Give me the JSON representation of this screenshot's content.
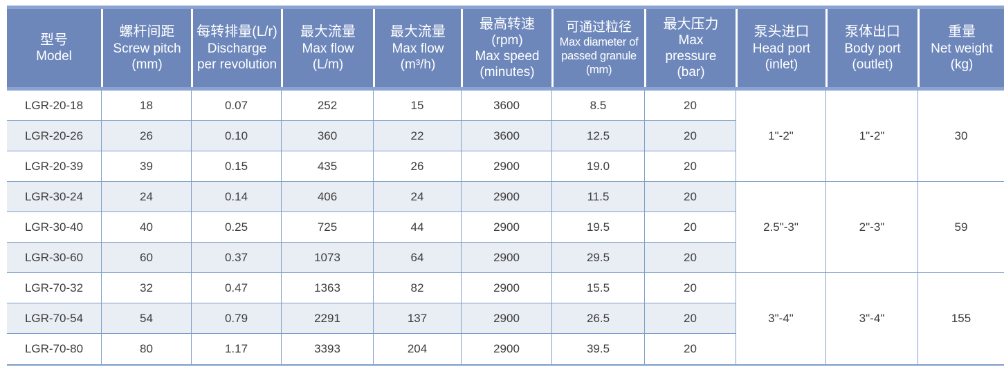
{
  "chart_data": {
    "type": "table",
    "columns": [
      {
        "key": "model",
        "zh": "型号",
        "en": [
          "Model"
        ]
      },
      {
        "key": "screw_pitch",
        "zh": "螺杆间距",
        "en": [
          "Screw pitch",
          "(mm)"
        ]
      },
      {
        "key": "discharge",
        "zh": "每转排量(L/r)",
        "en": [
          "Discharge",
          "per revolution"
        ]
      },
      {
        "key": "flow_lm",
        "zh": "最大流量",
        "en": [
          "Max flow",
          "(L/m)"
        ]
      },
      {
        "key": "flow_m3h",
        "zh": "最大流量",
        "en": [
          "Max flow",
          "(m³/h)"
        ]
      },
      {
        "key": "speed_rpm",
        "zh": "最高转速",
        "en": [
          "(rpm)",
          "Max speed",
          "(minutes)"
        ]
      },
      {
        "key": "granule_mm",
        "zh": "可通过粒径",
        "en": [
          "Max diameter of",
          "passed granule",
          "(mm)"
        ]
      },
      {
        "key": "pressure_bar",
        "zh": "最大压力",
        "en": [
          "Max",
          "pressure",
          "(bar)"
        ]
      },
      {
        "key": "head_port",
        "zh": "泵头进口",
        "en": [
          "Head port",
          "(inlet)"
        ]
      },
      {
        "key": "body_port",
        "zh": "泵体出口",
        "en": [
          "Body port",
          "(outlet)"
        ]
      },
      {
        "key": "net_weight",
        "zh": "重量",
        "en": [
          "Net weight",
          "(kg)"
        ]
      }
    ],
    "rows": [
      {
        "model": "LGR-20-18",
        "screw_pitch": "18",
        "discharge": "0.07",
        "flow_lm": "252",
        "flow_m3h": "15",
        "speed_rpm": "3600",
        "granule_mm": "8.5",
        "pressure_bar": "20"
      },
      {
        "model": "LGR-20-26",
        "screw_pitch": "26",
        "discharge": "0.10",
        "flow_lm": "360",
        "flow_m3h": "22",
        "speed_rpm": "3600",
        "granule_mm": "12.5",
        "pressure_bar": "20"
      },
      {
        "model": "LGR-20-39",
        "screw_pitch": "39",
        "discharge": "0.15",
        "flow_lm": "435",
        "flow_m3h": "26",
        "speed_rpm": "2900",
        "granule_mm": "19.0",
        "pressure_bar": "20"
      },
      {
        "model": "LGR-30-24",
        "screw_pitch": "24",
        "discharge": "0.14",
        "flow_lm": "406",
        "flow_m3h": "24",
        "speed_rpm": "2900",
        "granule_mm": "11.5",
        "pressure_bar": "20"
      },
      {
        "model": "LGR-30-40",
        "screw_pitch": "40",
        "discharge": "0.25",
        "flow_lm": "725",
        "flow_m3h": "44",
        "speed_rpm": "2900",
        "granule_mm": "19.5",
        "pressure_bar": "20"
      },
      {
        "model": "LGR-30-60",
        "screw_pitch": "60",
        "discharge": "0.37",
        "flow_lm": "1073",
        "flow_m3h": "64",
        "speed_rpm": "2900",
        "granule_mm": "29.5",
        "pressure_bar": "20"
      },
      {
        "model": "LGR-70-32",
        "screw_pitch": "32",
        "discharge": "0.47",
        "flow_lm": "1363",
        "flow_m3h": "82",
        "speed_rpm": "2900",
        "granule_mm": "15.5",
        "pressure_bar": "20"
      },
      {
        "model": "LGR-70-54",
        "screw_pitch": "54",
        "discharge": "0.79",
        "flow_lm": "2291",
        "flow_m3h": "137",
        "speed_rpm": "2900",
        "granule_mm": "26.5",
        "pressure_bar": "20"
      },
      {
        "model": "LGR-70-80",
        "screw_pitch": "80",
        "discharge": "1.17",
        "flow_lm": "3393",
        "flow_m3h": "204",
        "speed_rpm": "2900",
        "granule_mm": "39.5",
        "pressure_bar": "20"
      }
    ],
    "row_groups": [
      {
        "head_port": "1\"-2\"",
        "body_port": "1\"-2\"",
        "net_weight": "30"
      },
      {
        "head_port": "2.5\"-3\"",
        "body_port": "2\"-3\"",
        "net_weight": "59"
      },
      {
        "head_port": "3\"-4\"",
        "body_port": "3\"-4\"",
        "net_weight": "155"
      }
    ]
  },
  "colors": {
    "header_main": "#6d87bb",
    "header_edge": "#8ba3d0",
    "header_divider": "#ffffff",
    "header_text": "#ffffff",
    "row_alt": "#e9edf4",
    "grid_line": "#7d9cc9",
    "text": "#3c3c3c"
  }
}
